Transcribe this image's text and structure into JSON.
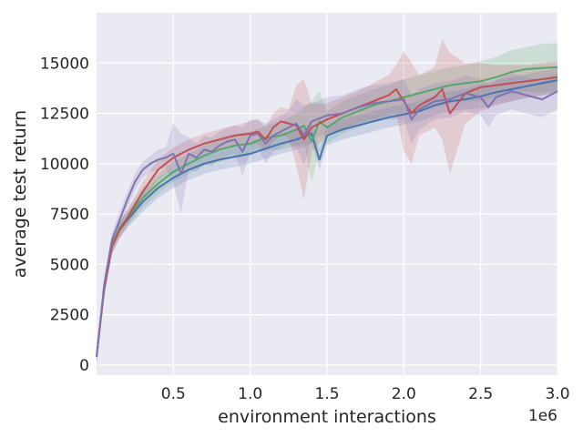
{
  "chart_data": {
    "type": "line",
    "title": "",
    "xlabel": "environment interactions",
    "ylabel": "average test return",
    "x_offset_label": "1e6",
    "xlim": [
      0.0,
      3.0
    ],
    "ylim": [
      -500,
      17500
    ],
    "x_ticks": [
      0.5,
      1.0,
      1.5,
      2.0,
      2.5,
      3.0
    ],
    "x_tick_labels": [
      "0.5",
      "1.0",
      "1.5",
      "2.0",
      "2.5",
      "3.0"
    ],
    "y_ticks": [
      0,
      2500,
      5000,
      7500,
      10000,
      12500,
      15000
    ],
    "y_tick_labels": [
      "0",
      "2500",
      "5000",
      "7500",
      "10000",
      "12500",
      "15000"
    ],
    "grid": true,
    "background": "#eaeaf2",
    "series": [
      {
        "color": "#4c72b0",
        "x": [
          0.0,
          0.05,
          0.1,
          0.15,
          0.2,
          0.3,
          0.4,
          0.5,
          0.6,
          0.7,
          0.8,
          0.9,
          1.0,
          1.1,
          1.2,
          1.3,
          1.4,
          1.45,
          1.5,
          1.6,
          1.7,
          1.8,
          1.9,
          2.0,
          2.1,
          2.2,
          2.3,
          2.4,
          2.5,
          2.6,
          2.7,
          2.8,
          2.9,
          3.0
        ],
        "y": [
          400,
          3800,
          5900,
          6700,
          7200,
          8100,
          8800,
          9300,
          9700,
          10000,
          10200,
          10350,
          10500,
          10750,
          11000,
          11200,
          11500,
          10200,
          11400,
          11700,
          11900,
          12100,
          12300,
          12450,
          12600,
          12900,
          13100,
          13200,
          13350,
          13550,
          13700,
          13850,
          14000,
          14150
        ],
        "band": [
          300,
          400,
          400,
          400,
          400,
          500,
          500,
          500,
          500,
          500,
          500,
          500,
          500,
          500,
          500,
          500,
          500,
          500,
          500,
          500,
          500,
          500,
          500,
          500,
          500,
          500,
          500,
          500,
          600,
          600,
          600,
          600,
          600,
          600
        ]
      },
      {
        "color": "#55a868",
        "x": [
          0.0,
          0.05,
          0.1,
          0.15,
          0.2,
          0.3,
          0.4,
          0.5,
          0.6,
          0.7,
          0.8,
          0.9,
          1.0,
          1.1,
          1.2,
          1.3,
          1.35,
          1.4,
          1.45,
          1.5,
          1.6,
          1.7,
          1.8,
          1.9,
          2.0,
          2.1,
          2.2,
          2.3,
          2.4,
          2.5,
          2.6,
          2.7,
          2.8,
          2.9,
          3.0
        ],
        "y": [
          400,
          3900,
          6000,
          6800,
          7300,
          8300,
          9000,
          9600,
          10000,
          10400,
          10700,
          10900,
          11000,
          11300,
          11400,
          11700,
          11900,
          11100,
          12100,
          11800,
          12300,
          12600,
          12900,
          13100,
          13300,
          13500,
          13700,
          13900,
          14000,
          14100,
          14300,
          14550,
          14700,
          14750,
          14800
        ],
        "band": [
          300,
          400,
          400,
          400,
          400,
          500,
          500,
          500,
          500,
          500,
          600,
          600,
          600,
          600,
          700,
          800,
          900,
          2000,
          1500,
          800,
          800,
          800,
          800,
          800,
          900,
          900,
          900,
          900,
          900,
          1000,
          1000,
          1100,
          1100,
          1200,
          1200
        ]
      },
      {
        "color": "#c44e52",
        "x": [
          0.0,
          0.05,
          0.1,
          0.15,
          0.2,
          0.3,
          0.4,
          0.5,
          0.6,
          0.7,
          0.8,
          0.9,
          1.0,
          1.05,
          1.1,
          1.15,
          1.2,
          1.25,
          1.3,
          1.35,
          1.4,
          1.5,
          1.6,
          1.7,
          1.8,
          1.9,
          1.95,
          2.0,
          2.05,
          2.1,
          2.2,
          2.25,
          2.3,
          2.4,
          2.5,
          2.6,
          2.7,
          2.8,
          2.9,
          3.0
        ],
        "y": [
          400,
          3800,
          5900,
          6700,
          7300,
          8600,
          9700,
          10300,
          10700,
          11000,
          11200,
          11400,
          11500,
          11600,
          11200,
          11800,
          12100,
          12000,
          11900,
          11200,
          11800,
          12200,
          12500,
          12800,
          13100,
          13400,
          13700,
          13100,
          12500,
          12900,
          13300,
          13700,
          12500,
          13500,
          13800,
          13900,
          14000,
          14100,
          14200,
          14300
        ],
        "band": [
          300,
          400,
          400,
          400,
          400,
          500,
          500,
          500,
          500,
          500,
          500,
          500,
          600,
          600,
          600,
          700,
          700,
          700,
          2000,
          3000,
          1200,
          800,
          800,
          800,
          900,
          1000,
          1200,
          2500,
          2500,
          1500,
          1500,
          2500,
          3000,
          1500,
          1200,
          1000,
          900,
          800,
          800,
          800
        ]
      },
      {
        "color": "#8172b2",
        "x": [
          0.0,
          0.05,
          0.1,
          0.15,
          0.2,
          0.25,
          0.3,
          0.35,
          0.4,
          0.45,
          0.5,
          0.55,
          0.6,
          0.65,
          0.7,
          0.75,
          0.8,
          0.85,
          0.9,
          0.95,
          1.0,
          1.05,
          1.1,
          1.15,
          1.2,
          1.25,
          1.3,
          1.35,
          1.4,
          1.5,
          1.6,
          1.7,
          1.8,
          1.9,
          2.0,
          2.05,
          2.1,
          2.2,
          2.3,
          2.4,
          2.5,
          2.55,
          2.6,
          2.7,
          2.8,
          2.9,
          3.0
        ],
        "y": [
          400,
          4000,
          6200,
          7200,
          8200,
          9100,
          9700,
          10000,
          10200,
          10300,
          10500,
          9500,
          10500,
          10300,
          10700,
          10600,
          10900,
          11100,
          11200,
          10600,
          11400,
          11500,
          11000,
          11400,
          11600,
          11800,
          12000,
          11400,
          12100,
          12400,
          12500,
          12800,
          13000,
          13100,
          13200,
          12200,
          12700,
          13100,
          13200,
          13500,
          13300,
          12800,
          13300,
          13600,
          13400,
          13200,
          13600
        ],
        "band": [
          300,
          400,
          400,
          400,
          400,
          400,
          400,
          400,
          500,
          500,
          1500,
          2000,
          800,
          700,
          700,
          700,
          700,
          700,
          700,
          1200,
          800,
          700,
          1000,
          800,
          800,
          800,
          1200,
          1500,
          900,
          900,
          900,
          900,
          900,
          900,
          1000,
          1200,
          1000,
          900,
          900,
          900,
          900,
          1000,
          900,
          900,
          900,
          900,
          900
        ]
      }
    ]
  }
}
